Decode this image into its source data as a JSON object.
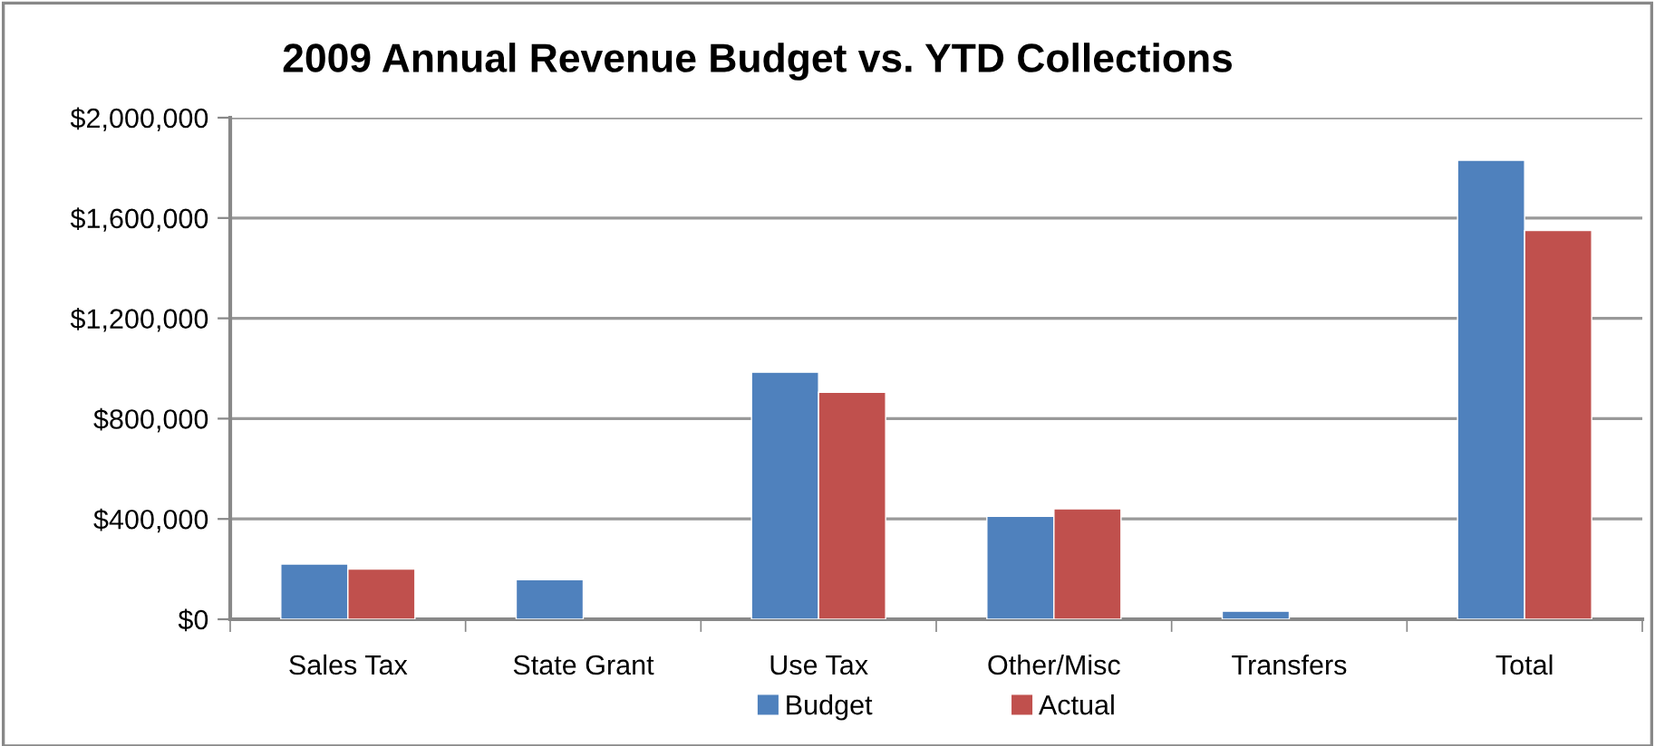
{
  "chart_data": {
    "type": "bar",
    "title": "2009 Annual Revenue Budget vs. YTD Collections",
    "categories": [
      "Sales Tax",
      "State Grant",
      "Use Tax",
      "Other/Misc",
      "Transfers",
      "Total"
    ],
    "series": [
      {
        "name": "Budget",
        "color": "#4f81bd",
        "values": [
          220000,
          158000,
          985000,
          410000,
          32000,
          1830000
        ]
      },
      {
        "name": "Actual",
        "color": "#c0504d",
        "values": [
          200000,
          null,
          905000,
          440000,
          null,
          1550000
        ]
      }
    ],
    "ylim": [
      0,
      2000000
    ],
    "yticks": [
      {
        "value": 0,
        "label": "$0"
      },
      {
        "value": 400000,
        "label": "$400,000"
      },
      {
        "value": 800000,
        "label": "$800,000"
      },
      {
        "value": 1200000,
        "label": "$1,200,000"
      },
      {
        "value": 1600000,
        "label": "$1,600,000"
      },
      {
        "value": 2000000,
        "label": "$2,000,000"
      }
    ],
    "grid": "y",
    "legend": "bottom"
  }
}
